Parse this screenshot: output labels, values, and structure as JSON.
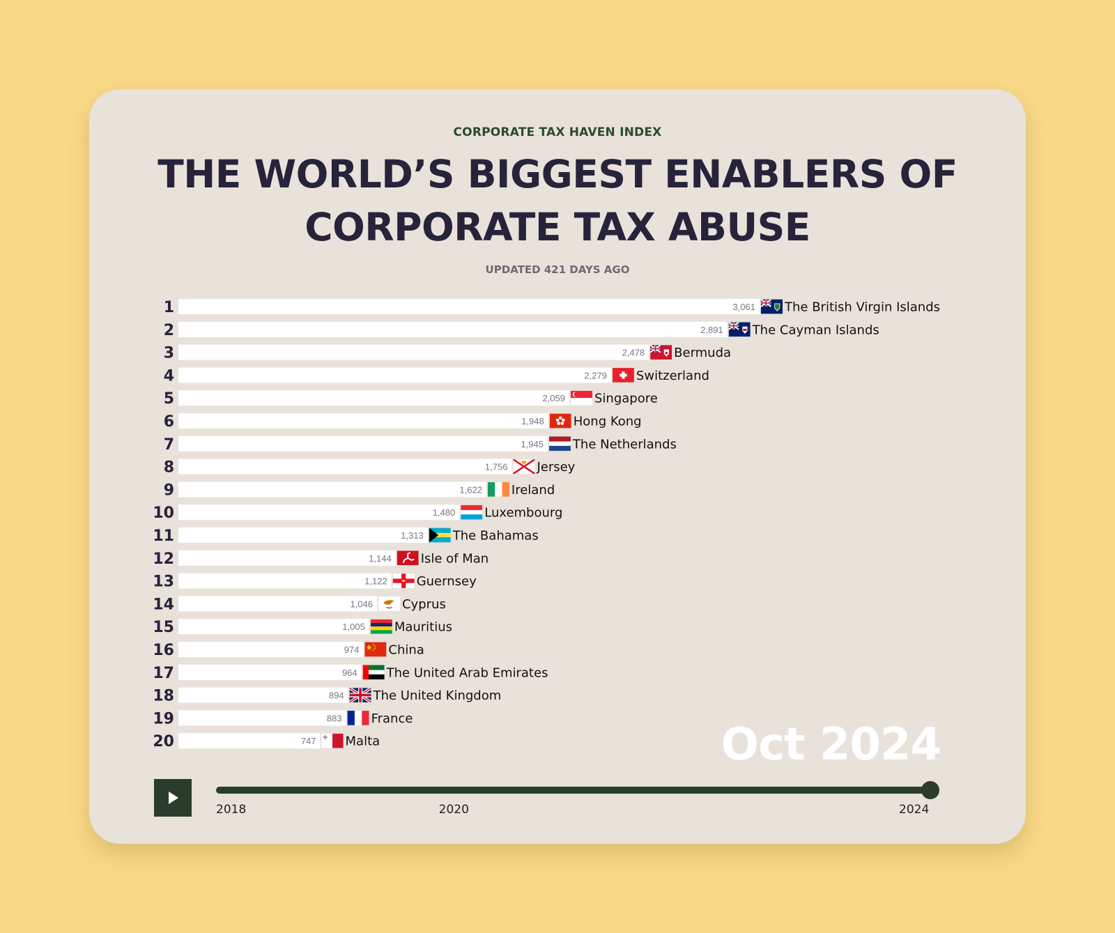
{
  "header": {
    "kicker": "CORPORATE TAX HAVEN INDEX",
    "title": "THE WORLD’S BIGGEST ENABLERS OF CORPORATE TAX ABUSE",
    "updated": "UPDATED 421 DAYS AGO"
  },
  "colors": {
    "page_background": "#f8d987",
    "card_background": "#e8e2da",
    "accent": "#2a3d2c",
    "title": "#26233b",
    "bar": "#ffffff"
  },
  "chart_data": {
    "type": "bar",
    "orientation": "horizontal",
    "period": "Oct 2024",
    "categories": [
      "The British Virgin Islands",
      "The Cayman Islands",
      "Bermuda",
      "Switzerland",
      "Singapore",
      "Hong Kong",
      "The Netherlands",
      "Jersey",
      "Ireland",
      "Luxembourg",
      "The Bahamas",
      "Isle of Man",
      "Guernsey",
      "Cyprus",
      "Mauritius",
      "China",
      "The United Arab Emirates",
      "The United Kingdom",
      "France",
      "Malta"
    ],
    "ranks": [
      "1",
      "2",
      "3",
      "4",
      "5",
      "6",
      "7",
      "8",
      "9",
      "10",
      "11",
      "12",
      "13",
      "14",
      "15",
      "16",
      "17",
      "18",
      "19",
      "20"
    ],
    "value_labels": [
      "3,061",
      "2,891",
      "2,478",
      "2,279",
      "2,059",
      "1,948",
      "1,945",
      "1,756",
      "1,622",
      "1,480",
      "1,313",
      "1,144",
      "1,122",
      "1,046",
      "1,005",
      "974",
      "964",
      "894",
      "883",
      "747"
    ],
    "values": [
      3061,
      2891,
      2478,
      2279,
      2059,
      1948,
      1945,
      1756,
      1622,
      1480,
      1313,
      1144,
      1122,
      1046,
      1005,
      974,
      964,
      894,
      883,
      747
    ],
    "flag_icons": [
      "flag-bvi-icon",
      "flag-cayman-islands-icon",
      "flag-bermuda-icon",
      "flag-switzerland-icon",
      "flag-singapore-icon",
      "flag-hong-kong-icon",
      "flag-netherlands-icon",
      "flag-jersey-icon",
      "flag-ireland-icon",
      "flag-luxembourg-icon",
      "flag-bahamas-icon",
      "flag-isle-of-man-icon",
      "flag-guernsey-icon",
      "flag-cyprus-icon",
      "flag-mauritius-icon",
      "flag-china-icon",
      "flag-uae-icon",
      "flag-uk-icon",
      "flag-france-icon",
      "flag-malta-icon"
    ],
    "xlim": [
      0,
      3061
    ],
    "bar_color": "#ffffff"
  },
  "timeline": {
    "play_icon": "play-icon",
    "ticks": [
      "2018",
      "2020",
      "2024"
    ],
    "tick_years": [
      2018,
      2020,
      2024
    ],
    "range": [
      2018,
      2024
    ],
    "current": 2024
  }
}
